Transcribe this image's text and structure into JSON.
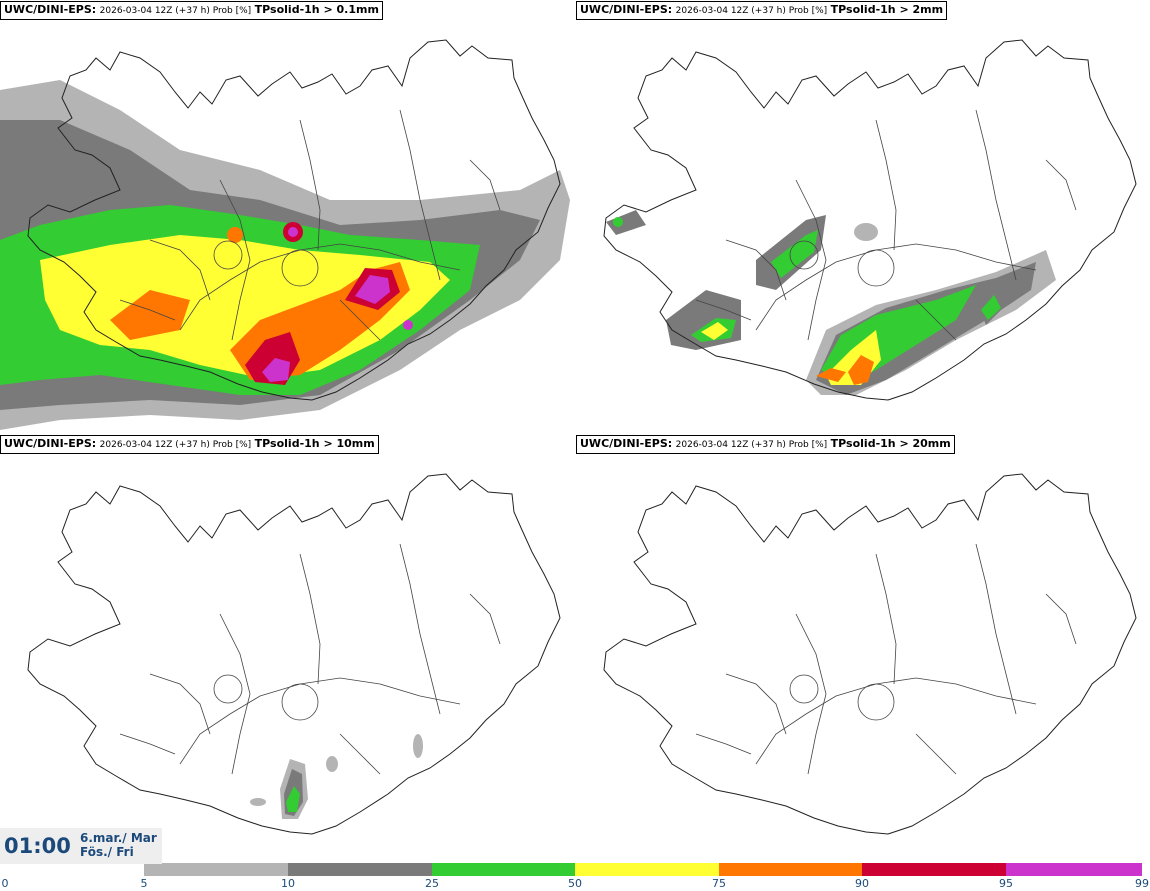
{
  "panels": [
    {
      "model": "UWC/DINI-EPS:",
      "meta": "2026-03-04 12Z (+37 h) Prob [%]",
      "param": "TPsolid-1h > 0.1mm"
    },
    {
      "model": "UWC/DINI-EPS:",
      "meta": "2026-03-04 12Z (+37 h) Prob [%]",
      "param": "TPsolid-1h > 2mm"
    },
    {
      "model": "UWC/DINI-EPS:",
      "meta": "2026-03-04 12Z (+37 h) Prob [%]",
      "param": "TPsolid-1h > 10mm"
    },
    {
      "model": "UWC/DINI-EPS:",
      "meta": "2026-03-04 12Z (+37 h) Prob [%]",
      "param": "TPsolid-1h > 20mm"
    }
  ],
  "time": {
    "hour": "01:00",
    "date_line1": "6.mar./ Mar",
    "date_line2": "Fös./ Fri"
  },
  "colorbar": {
    "ticks": [
      "0",
      "5",
      "10",
      "25",
      "50",
      "75",
      "90",
      "95",
      "99"
    ],
    "colors": [
      "#ffffff",
      "#b4b4b4",
      "#7a7a7a",
      "#33cc33",
      "#ffff33",
      "#ff7700",
      "#cc0033",
      "#cc33cc",
      "#f2b3f2"
    ]
  }
}
